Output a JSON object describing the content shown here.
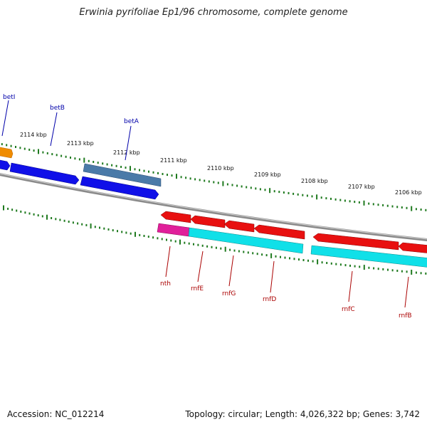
{
  "title": "Erwinia pyrifoliae Ep1/96 chromosome, complete genome",
  "footer": {
    "accession": "Accession: NC_012214",
    "summary": "Topology: circular; Length: 4,026,322 bp; Genes: 3,742"
  },
  "colors": {
    "backbone": "#8a8a8a",
    "tick": "#1f7a1f",
    "blue_gene": "#1010e8",
    "steel_gene": "#4a7aa8",
    "orange_gene": "#f08c00",
    "red_gene": "#e81010",
    "magenta_gene": "#e0209a",
    "cyan_gene": "#10e0e8",
    "label_blue": "#0000aa",
    "label_red": "#aa0000"
  },
  "scale": {
    "labels": [
      "2114 kbp",
      "2113 kbp",
      "2112 kbp",
      "2111 kbp",
      "2110 kbp",
      "2109 kbp",
      "2108 kbp",
      "2107 kbp",
      "2106 kbp"
    ]
  },
  "genes": [
    {
      "name": "betI",
      "strand": "plus"
    },
    {
      "name": "betB",
      "strand": "plus"
    },
    {
      "name": "betA",
      "strand": "plus"
    },
    {
      "name": "nth",
      "strand": "minus"
    },
    {
      "name": "rnfE",
      "strand": "minus"
    },
    {
      "name": "rnfG",
      "strand": "minus"
    },
    {
      "name": "rnfD",
      "strand": "minus"
    },
    {
      "name": "rnfC",
      "strand": "minus"
    },
    {
      "name": "rnfB",
      "strand": "minus"
    }
  ]
}
